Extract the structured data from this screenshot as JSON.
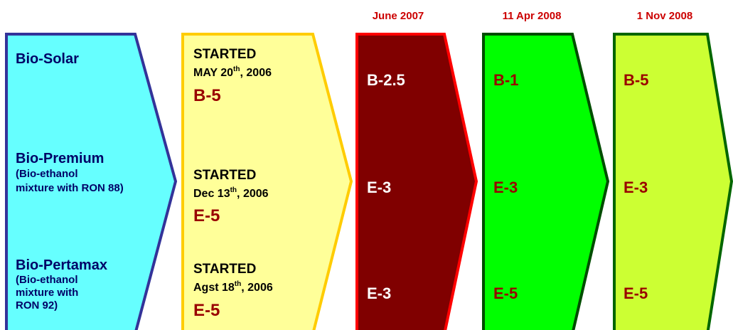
{
  "columns": [
    {
      "rows": [
        {
          "title": "Bio-Solar"
        },
        {
          "title": "Bio-Premium",
          "note": [
            "(Bio-ethanol",
            "mixture with RON 88)"
          ]
        },
        {
          "title": "Bio-Pertamax",
          "note": [
            "(Bio-ethanol",
            "mixture with",
            "RON 92)"
          ]
        }
      ]
    },
    {
      "rows": [
        {
          "status": "STARTED",
          "date": [
            "MAY 20",
            "th",
            ", 2006"
          ],
          "code": "B-5"
        },
        {
          "status": "STARTED",
          "date": [
            "Dec 13",
            "th",
            ", 2006"
          ],
          "code": "E-5"
        },
        {
          "status": "STARTED",
          "date": [
            "Agst 18",
            "th",
            ", 2006"
          ],
          "code": "E-5"
        }
      ]
    },
    {
      "header": "June 2007",
      "rows": [
        "B-2.5",
        "E-3",
        "E-3"
      ]
    },
    {
      "header": "11 Apr 2008",
      "rows": [
        "B-1",
        "E-3",
        "E-5"
      ]
    },
    {
      "header": "1 Nov 2008",
      "rows": [
        "B-5",
        "E-3",
        "E-5"
      ]
    }
  ]
}
